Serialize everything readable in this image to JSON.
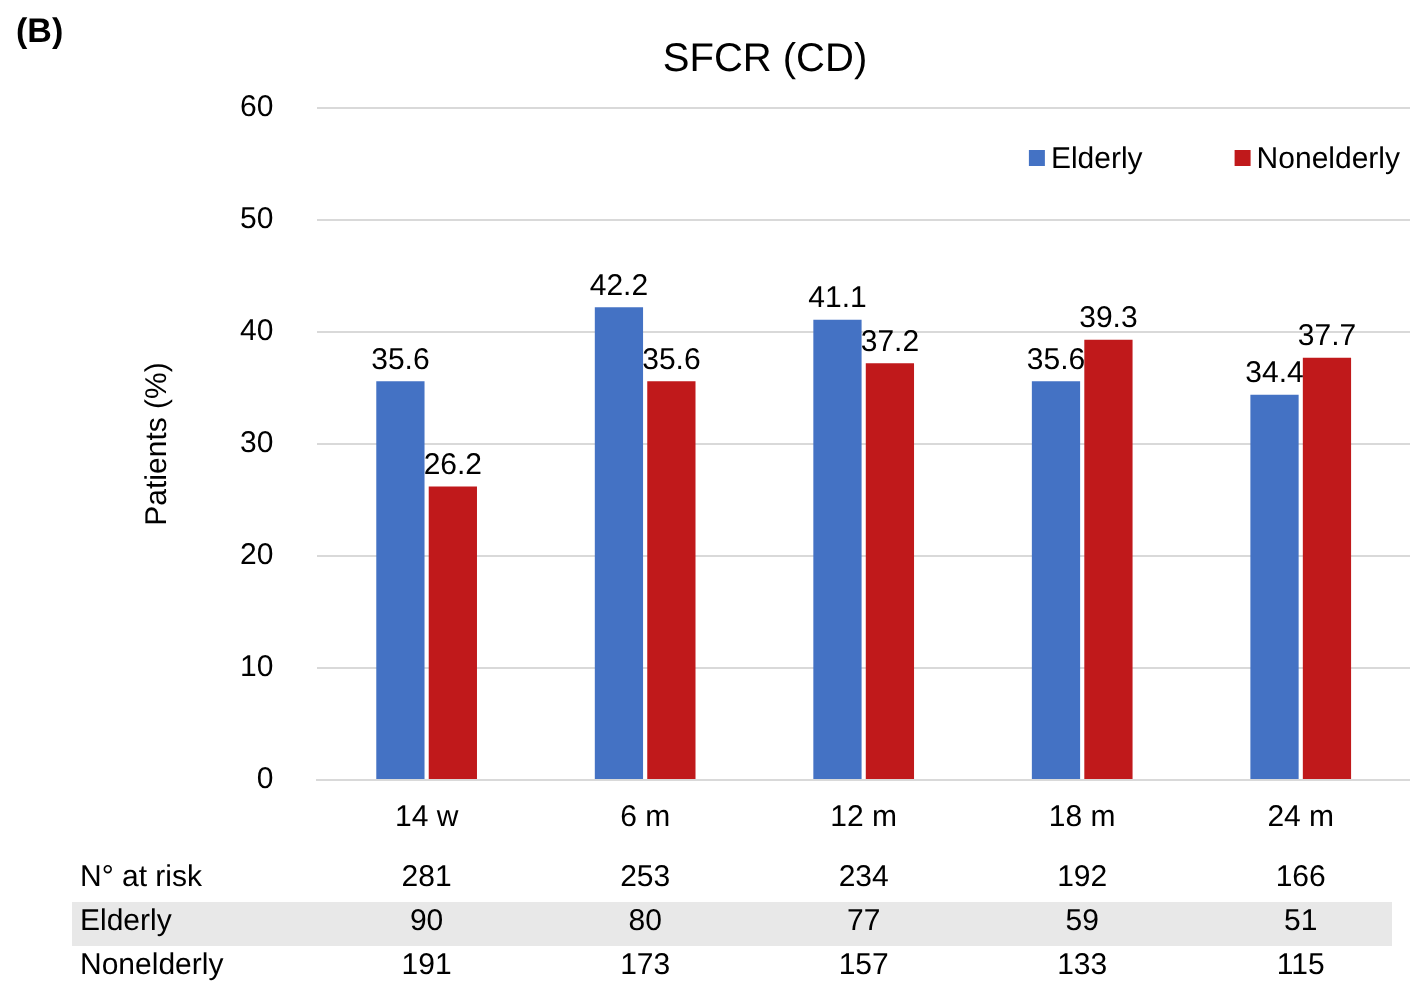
{
  "chart_data": {
    "type": "bar",
    "title": "SFCR (CD)",
    "ylabel": "Patients (%)",
    "categories": [
      "14 w",
      "6 m",
      "12 m",
      "18 m",
      "24 m"
    ],
    "series": [
      {
        "name": "Elderly",
        "color": "#4472c4",
        "values": [
          35.6,
          42.2,
          41.1,
          35.6,
          34.4
        ]
      },
      {
        "name": "Nonelderly",
        "color": "#c0191b",
        "values": [
          26.2,
          35.6,
          37.2,
          39.3,
          37.7
        ]
      }
    ],
    "ylim": [
      0,
      60
    ],
    "yticks": [
      0,
      10,
      20,
      30,
      40,
      50,
      60
    ],
    "grid": "y",
    "legend": "top right",
    "data_labels": true,
    "annotations": [
      "(B)",
      "N° at risk",
      "281",
      "253",
      "234",
      "192",
      "166",
      "Elderly",
      "90",
      "80",
      "77",
      "59",
      "51",
      "Nonelderly",
      "191",
      "173",
      "157",
      "133",
      "115"
    ]
  }
}
